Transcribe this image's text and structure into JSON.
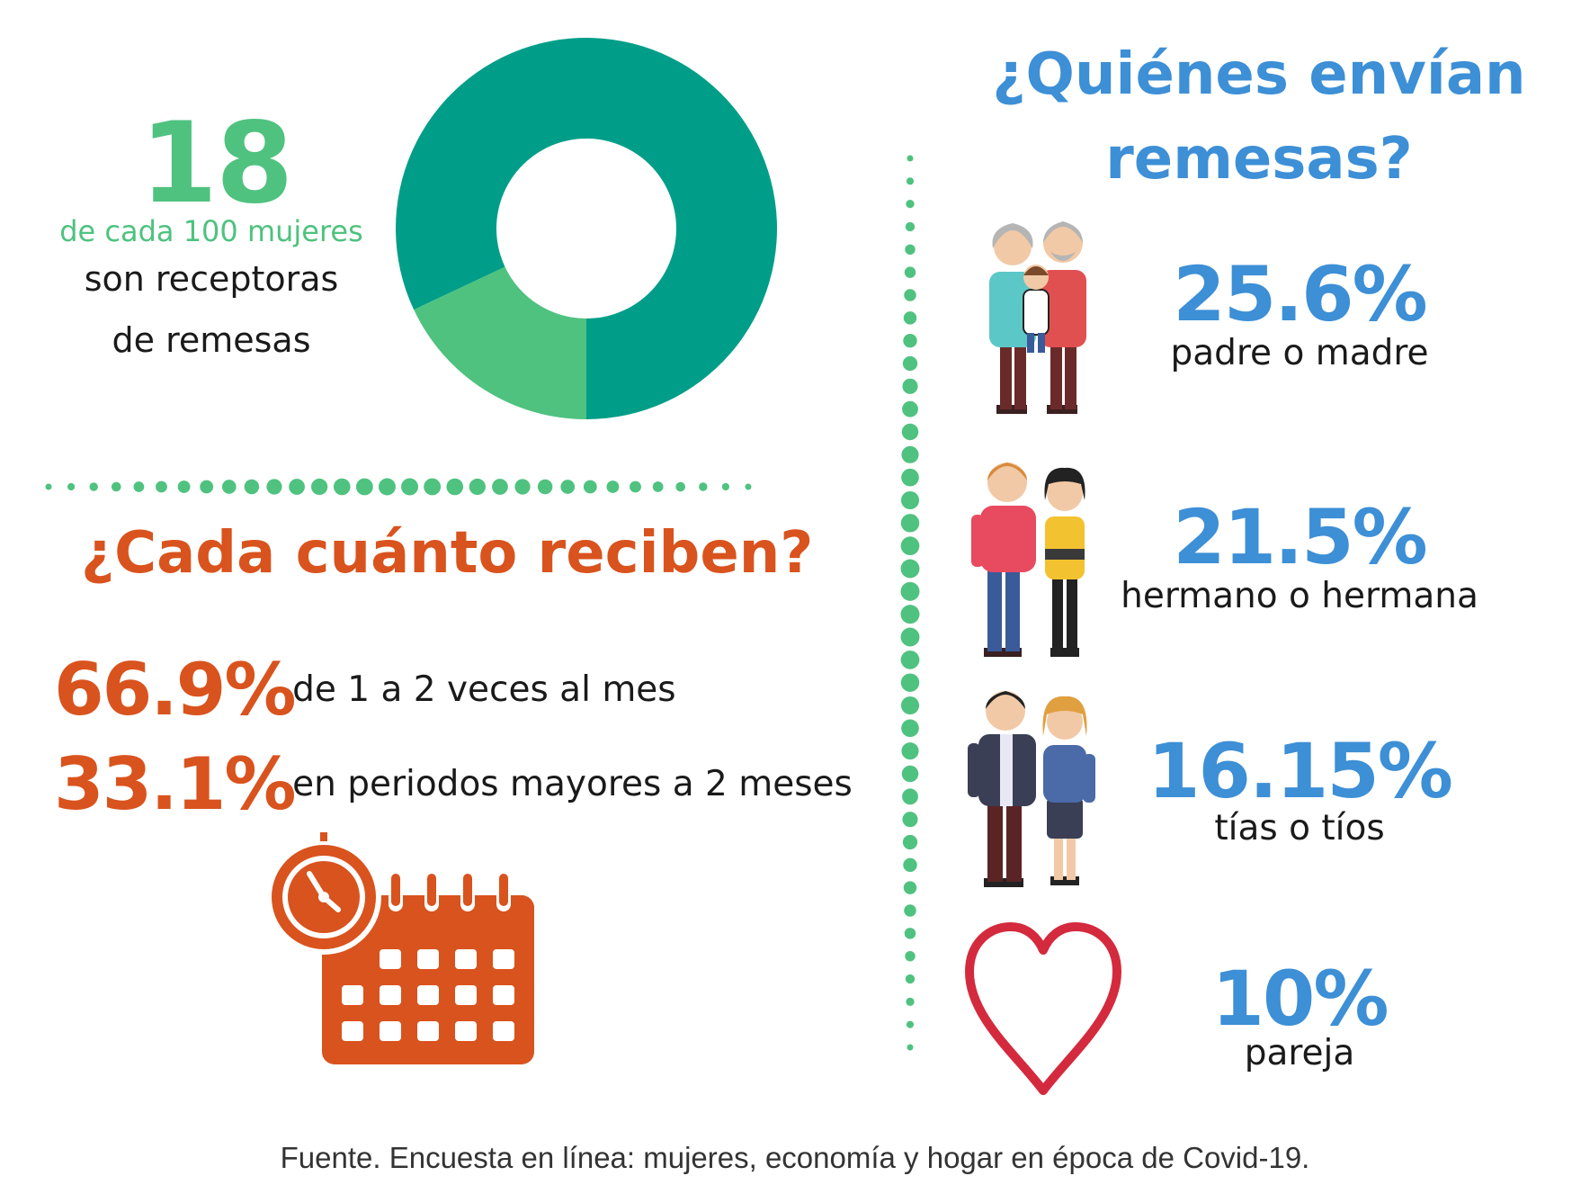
{
  "donut": {
    "big_number": "18",
    "subtitle": "de cada 100 mujeres",
    "line1": "son receptoras",
    "line2": "de remesas",
    "receptoras_fraction": 0.18,
    "colors": {
      "main": "#009e88",
      "share": "#4fc27f"
    }
  },
  "frequency": {
    "title": "¿Cada cuánto reciben?",
    "rows": [
      {
        "pct": "66.9%",
        "label": "de 1 a  2 veces al mes"
      },
      {
        "pct": "33.1%",
        "label": "en periodos mayores a 2 meses"
      }
    ],
    "icon": "clock-calendar-icon",
    "color": "#d9531e"
  },
  "senders": {
    "title_line1": "¿Quiénes envían",
    "title_line2": "remesas?",
    "items": [
      {
        "pct": "25.6%",
        "label": "padre o madre",
        "icon": "grandparents-icon"
      },
      {
        "pct": "21.5%",
        "label": "hermano o hermana",
        "icon": "siblings-icon"
      },
      {
        "pct": "16.15%",
        "label": "tías o tíos",
        "icon": "couple-icon"
      },
      {
        "pct": "10%",
        "label": "pareja",
        "icon": "heart-icon"
      }
    ],
    "color": "#3d8fd6"
  },
  "source": "Fuente. Encuesta en línea: mujeres, economía y hogar en época de Covid-19."
}
